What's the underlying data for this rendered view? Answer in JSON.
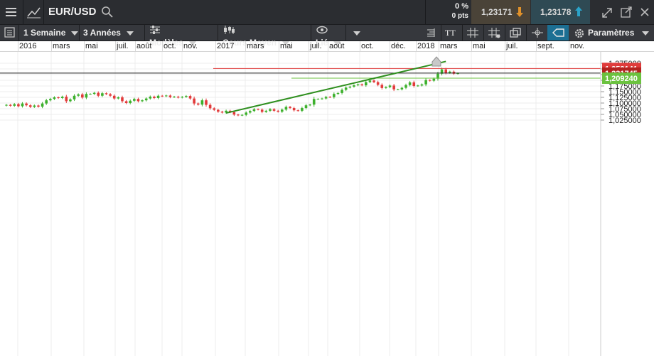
{
  "header": {
    "symbol": "EUR/USD",
    "change_pct": "0 %",
    "change_pts": "0 pts",
    "sell_price": "1,23171",
    "buy_price": "1,23178"
  },
  "toolbar": {
    "interval": "1 Semaine",
    "range": "3 Années",
    "models": "Modèles",
    "price_type": "Cours Moyen",
    "linked": "Lié",
    "text_tool": "TT",
    "params": "Paramètres"
  },
  "timeline": {
    "labels": [
      "2016",
      "mars",
      "mai",
      "juil.",
      "août",
      "oct.",
      "nov.",
      "2017",
      "mars",
      "mai",
      "juil.",
      "août",
      "oct.",
      "déc.",
      "2018",
      "mars",
      "mai",
      "juil.",
      "sept.",
      "nov."
    ]
  },
  "chart_data": {
    "type": "candlestick",
    "instrument": "EUR/USD",
    "interval": "1 Semaine",
    "ylim": [
      1.025,
      1.275
    ],
    "y_ticks": [
      "1,275000",
      "1,250000",
      "1,225000",
      "1,200000",
      "1,175000",
      "1,150000",
      "1,125000",
      "1,100000",
      "1,075000",
      "1,050000",
      "1,025000"
    ],
    "x_labels": [
      "2016",
      "mars",
      "mai",
      "juil.",
      "août",
      "oct.",
      "nov.",
      "2017",
      "mars",
      "mai",
      "juil.",
      "août",
      "oct.",
      "déc.",
      "2018",
      "mars",
      "mai",
      "juil.",
      "sept.",
      "nov."
    ],
    "price_markers": [
      {
        "label": "1,252141",
        "value": 1.252141,
        "color": "#e03b3b"
      },
      {
        "label": "1,231745",
        "value": 1.231745,
        "color": "#b3221f"
      },
      {
        "label": "1,209240",
        "value": 1.20924,
        "color": "#6bc23f"
      }
    ],
    "trendline": {
      "from": [
        55,
        1.056
      ],
      "to": [
        110,
        1.283
      ]
    },
    "closes": [
      1.092,
      1.088,
      1.095,
      1.086,
      1.098,
      1.09,
      1.083,
      1.089,
      1.084,
      1.098,
      1.112,
      1.118,
      1.125,
      1.122,
      1.128,
      1.108,
      1.116,
      1.132,
      1.138,
      1.124,
      1.14,
      1.14,
      1.145,
      1.132,
      1.143,
      1.139,
      1.132,
      1.12,
      1.125,
      1.108,
      1.1,
      1.11,
      1.118,
      1.108,
      1.112,
      1.12,
      1.128,
      1.122,
      1.132,
      1.13,
      1.133,
      1.126,
      1.128,
      1.124,
      1.127,
      1.131,
      1.12,
      1.098,
      1.093,
      1.112,
      1.092,
      1.077,
      1.07,
      1.062,
      1.058,
      1.066,
      1.06,
      1.049,
      1.046,
      1.048,
      1.058,
      1.065,
      1.073,
      1.071,
      1.061,
      1.066,
      1.073,
      1.066,
      1.062,
      1.071,
      1.083,
      1.078,
      1.068,
      1.066,
      1.078,
      1.09,
      1.093,
      1.118,
      1.118,
      1.12,
      1.127,
      1.126,
      1.14,
      1.144,
      1.158,
      1.168,
      1.172,
      1.178,
      1.182,
      1.178,
      1.192,
      1.199,
      1.192,
      1.18,
      1.166,
      1.17,
      1.177,
      1.16,
      1.16,
      1.167,
      1.179,
      1.191,
      1.175,
      1.177,
      1.182,
      1.201,
      1.198,
      1.207,
      1.229,
      1.248,
      1.233,
      1.238,
      1.229,
      1.231
    ]
  }
}
